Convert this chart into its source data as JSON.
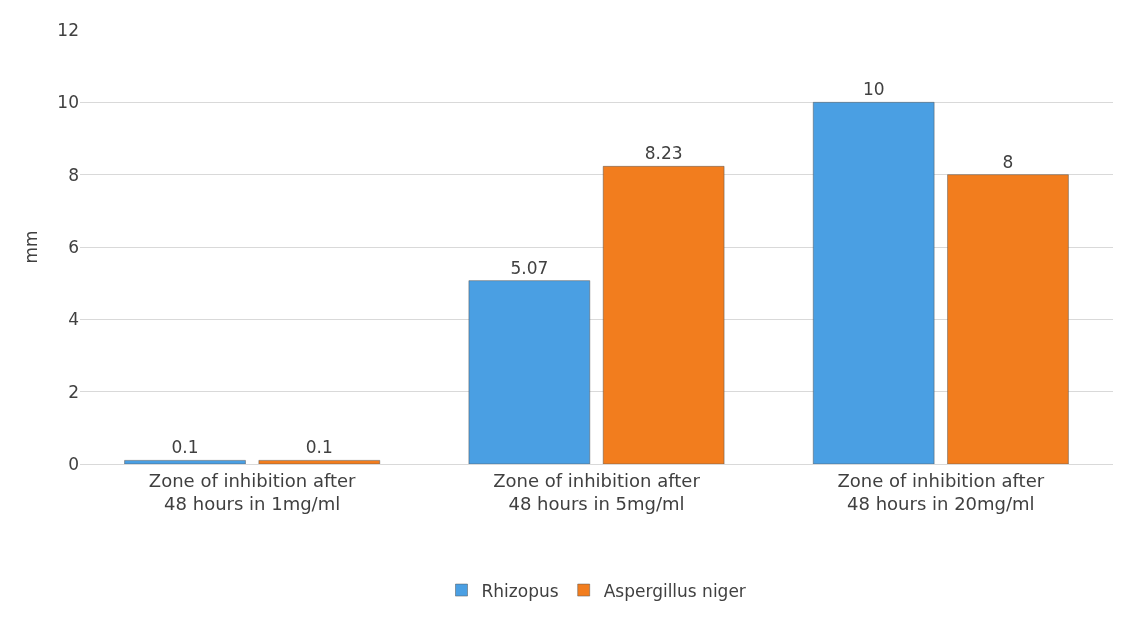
{
  "chart_data": {
    "type": "bar",
    "ylabel": "mm",
    "categories": [
      "Zone of inhibition after 48 hours in 1mg/ml",
      "Zone of inhibition after 48 hours in 5mg/ml",
      "Zone of inhibition after 48 hours in 20mg/ml"
    ],
    "series": [
      {
        "name": "Rhizopus",
        "color": "#4a9fe3",
        "values": [
          0.1,
          5.07,
          10
        ]
      },
      {
        "name": "Aspergillus niger",
        "color": "#f27d1e",
        "values": [
          0.1,
          8.23,
          8
        ]
      }
    ],
    "ylim": [
      0,
      12
    ],
    "yticks": [
      0,
      2,
      4,
      6,
      8,
      10,
      12
    ],
    "grid": "y",
    "legend": "bottom",
    "data_labels": true
  }
}
